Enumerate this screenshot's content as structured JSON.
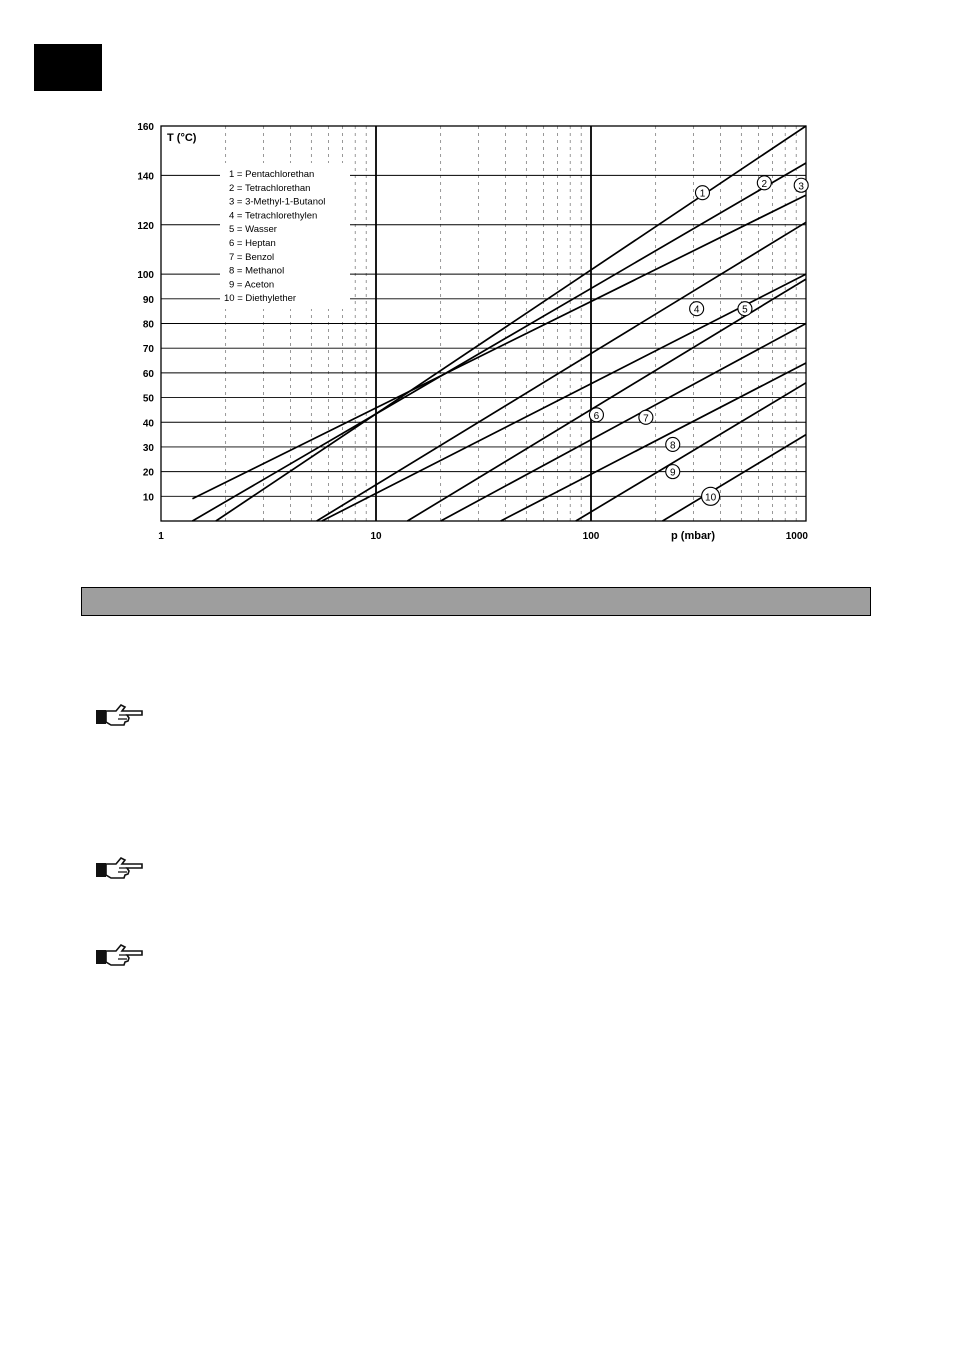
{
  "chart_data": {
    "type": "line",
    "xscale": "log",
    "xlim": [
      1,
      1000
    ],
    "ylim": [
      0,
      160
    ],
    "xlabel": "p (mbar)",
    "ylabel": "T (°C)",
    "x_ticks": [
      "1",
      "10",
      "100",
      "1000"
    ],
    "y_ticks": [
      "10",
      "20",
      "30",
      "40",
      "50",
      "60",
      "70",
      "80",
      "90",
      "100",
      "120",
      "140",
      "160"
    ],
    "grid": true,
    "legend_position": "top-left",
    "legend": [
      "1 = Pentachlorethan",
      "2 = Tetrachlorethan",
      "3 = 3-Methyl-1-Butanol",
      "4 = Tetrachlorethylen",
      "5 = Wasser",
      "6 = Heptan",
      "7 = Benzol",
      "8 = Methanol",
      "9 = Aceton",
      "10 = Diethylether"
    ],
    "series": [
      {
        "label": "1",
        "x": [
          1.8,
          1000
        ],
        "y": [
          0,
          160
        ]
      },
      {
        "label": "2",
        "x": [
          1.4,
          1000
        ],
        "y": [
          0,
          145
        ]
      },
      {
        "label": "3",
        "x": [
          1.4,
          1000
        ],
        "y": [
          9,
          132
        ]
      },
      {
        "label": "4",
        "x": [
          5.3,
          1000
        ],
        "y": [
          0,
          121
        ]
      },
      {
        "label": "5",
        "x": [
          5.6,
          1000
        ],
        "y": [
          0,
          100
        ]
      },
      {
        "label": "6",
        "x": [
          14,
          1000
        ],
        "y": [
          0,
          98
        ]
      },
      {
        "label": "7",
        "x": [
          20,
          1000
        ],
        "y": [
          0,
          80
        ]
      },
      {
        "label": "8",
        "x": [
          38,
          1000
        ],
        "y": [
          0,
          64
        ]
      },
      {
        "label": "9",
        "x": [
          85,
          1000
        ],
        "y": [
          0,
          56
        ]
      },
      {
        "label": "10",
        "x": [
          215,
          1000
        ],
        "y": [
          0,
          35
        ]
      }
    ],
    "curve_labels": [
      {
        "text": "1",
        "x": 330,
        "y": 133
      },
      {
        "text": "2",
        "x": 640,
        "y": 137
      },
      {
        "text": "3",
        "x": 950,
        "y": 136
      },
      {
        "text": "4",
        "x": 310,
        "y": 86
      },
      {
        "text": "5",
        "x": 520,
        "y": 86
      },
      {
        "text": "6",
        "x": 106,
        "y": 43
      },
      {
        "text": "7",
        "x": 180,
        "y": 42
      },
      {
        "text": "8",
        "x": 240,
        "y": 31
      },
      {
        "text": "9",
        "x": 240,
        "y": 20
      },
      {
        "text": "10",
        "x": 360,
        "y": 10
      }
    ]
  },
  "icons": [
    "pointing-hand-icon",
    "pointing-hand-icon",
    "pointing-hand-icon"
  ]
}
